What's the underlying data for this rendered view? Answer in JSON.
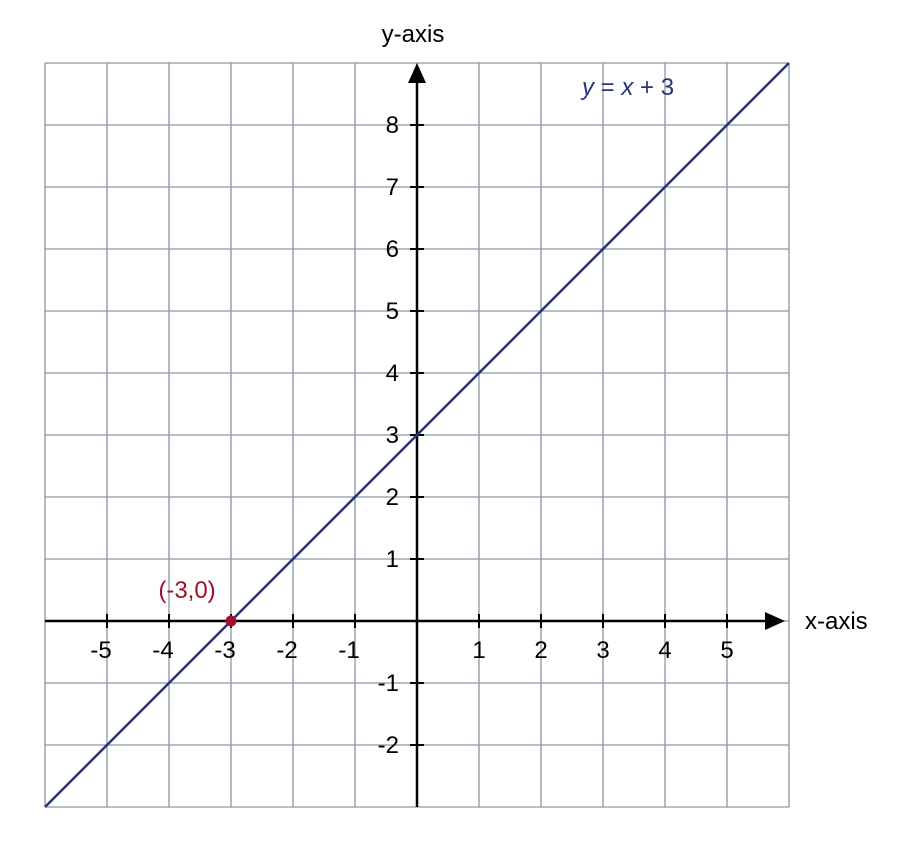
{
  "chart_data": {
    "type": "line",
    "xlabel": "x-axis",
    "ylabel": "y-axis",
    "xlim": [
      -6,
      6
    ],
    "ylim": [
      -3,
      9
    ],
    "grid": true,
    "x_ticks": [
      -5,
      -4,
      -3,
      -2,
      -1,
      1,
      2,
      3,
      4,
      5
    ],
    "y_ticks": [
      -2,
      -1,
      1,
      2,
      3,
      4,
      5,
      6,
      7,
      8
    ],
    "x_tick_labels": [
      "-5",
      "-4",
      "-3",
      "-2",
      "-1",
      "1",
      "2",
      "3",
      "4",
      "5"
    ],
    "y_tick_labels": [
      "-2",
      "-1",
      "1",
      "2",
      "3",
      "4",
      "5",
      "6",
      "7",
      "8"
    ],
    "series": [
      {
        "name": "y = x + 3",
        "label_parts": [
          "y",
          " = ",
          "x",
          " + 3"
        ],
        "x": [
          -6,
          6
        ],
        "y": [
          -3,
          9
        ],
        "color": "#26357a"
      }
    ],
    "annotations": [
      {
        "text": "(-3,0)",
        "x": -3,
        "y": 0,
        "color": "#a00f2b"
      }
    ],
    "colors": {
      "grid": "#8a96a8",
      "axis": "#000000"
    }
  }
}
